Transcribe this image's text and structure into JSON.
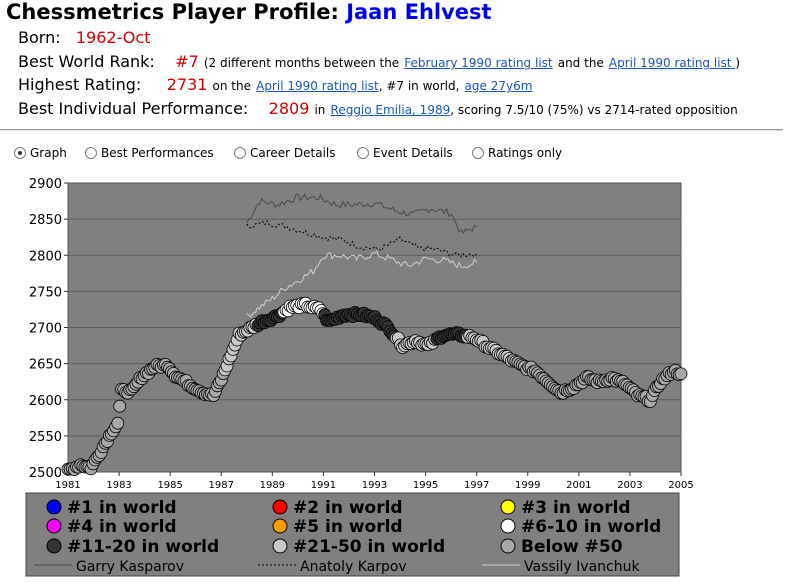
{
  "header": {
    "title_prefix": "Chessmetrics Player Profile:",
    "player_name": "Jaan Ehlvest"
  },
  "born": {
    "label": "Born:",
    "value": "1962-Oct"
  },
  "best_rank": {
    "label": "Best World Rank:",
    "value": "#7",
    "note_pre": "(2 different months between the",
    "link1": "February 1990 rating list",
    "note_mid": "and the",
    "link2": "April 1990 rating list ",
    "note_post": ")"
  },
  "highest_rating": {
    "label": "Highest Rating:",
    "value": "2731",
    "pre": "on the",
    "link": "April 1990 rating list",
    "mid": ", #7 in world,",
    "age_link": "age 27y6m"
  },
  "best_performance": {
    "label": "Best Individual Performance:",
    "value": "2809",
    "pre": "in",
    "link": "Reggio Emilia, 1989",
    "post": ", scoring 7.5/10 (75%) vs 2714-rated opposition"
  },
  "tabs": [
    {
      "label": "Graph",
      "selected": true
    },
    {
      "label": "Best Performances",
      "selected": false
    },
    {
      "label": "Career Details",
      "selected": false
    },
    {
      "label": "Event Details",
      "selected": false
    },
    {
      "label": "Ratings only",
      "selected": false
    }
  ],
  "chart_data": {
    "type": "scatter",
    "title": "",
    "xlabel": "",
    "ylabel": "",
    "xlim": [
      1981,
      2005
    ],
    "ylim": [
      2500,
      2900
    ],
    "x_ticks": [
      "1981",
      "1983",
      "1985",
      "1987",
      "1989",
      "1991",
      "1993",
      "1995",
      "1997",
      "1999",
      "2001",
      "2003",
      "2005"
    ],
    "y_ticks": [
      "2500",
      "2550",
      "2600",
      "2650",
      "2700",
      "2750",
      "2800",
      "2850",
      "2900"
    ],
    "grid": "horizontal",
    "plot_bg": "#808080",
    "legend_position": "bottom",
    "rank_categories": [
      {
        "label": "#1 in world",
        "color": "#0000ff"
      },
      {
        "label": "#2 in world",
        "color": "#ff0000"
      },
      {
        "label": "#3 in world",
        "color": "#ffff00"
      },
      {
        "label": "#4 in world",
        "color": "#ff00ff"
      },
      {
        "label": "#5 in world",
        "color": "#ff9900"
      },
      {
        "label": "#6-10 in world",
        "color": "#ffffff"
      },
      {
        "label": "#11-20 in world",
        "color": "#333333"
      },
      {
        "label": "#21-50 in world",
        "color": "#c8c8c8"
      },
      {
        "label": "Below #50",
        "color": "#a8a8a8"
      }
    ],
    "comparison_lines": [
      {
        "name": "Garry Kasparov",
        "style": "solid",
        "color": "#4a4a4a"
      },
      {
        "name": "Anatoly Karpov",
        "style": "dotted",
        "color": "#000000"
      },
      {
        "name": "Vassily Ivanchuk",
        "style": "solid",
        "color": "#cfcfcf"
      }
    ],
    "player_anchors": [
      {
        "x": 1981.0,
        "y": 2502,
        "rank": "Below #50"
      },
      {
        "x": 1981.5,
        "y": 2510,
        "rank": "Below #50"
      },
      {
        "x": 1981.9,
        "y": 2506,
        "rank": "Below #50"
      },
      {
        "x": 1982.3,
        "y": 2530,
        "rank": "Below #50"
      },
      {
        "x": 1982.7,
        "y": 2555,
        "rank": "Below #50"
      },
      {
        "x": 1982.95,
        "y": 2568,
        "rank": "Below #50"
      },
      {
        "x": 1983.1,
        "y": 2612,
        "rank": "Below #50"
      },
      {
        "x": 1983.5,
        "y": 2612,
        "rank": "Below #50"
      },
      {
        "x": 1983.9,
        "y": 2632,
        "rank": "Below #50"
      },
      {
        "x": 1984.4,
        "y": 2646,
        "rank": "Below #50"
      },
      {
        "x": 1984.9,
        "y": 2648,
        "rank": "Below #50"
      },
      {
        "x": 1985.2,
        "y": 2634,
        "rank": "Below #50"
      },
      {
        "x": 1985.8,
        "y": 2620,
        "rank": "Below #50"
      },
      {
        "x": 1986.3,
        "y": 2610,
        "rank": "Below #50"
      },
      {
        "x": 1986.7,
        "y": 2606,
        "rank": "Below #50"
      },
      {
        "x": 1987.0,
        "y": 2628,
        "rank": "Below #50"
      },
      {
        "x": 1987.3,
        "y": 2655,
        "rank": "#21-50 in world"
      },
      {
        "x": 1987.7,
        "y": 2690,
        "rank": "#21-50 in world"
      },
      {
        "x": 1988.2,
        "y": 2700,
        "rank": "#21-50 in world"
      },
      {
        "x": 1988.6,
        "y": 2708,
        "rank": "#11-20 in world"
      },
      {
        "x": 1989.2,
        "y": 2716,
        "rank": "#11-20 in world"
      },
      {
        "x": 1989.7,
        "y": 2728,
        "rank": "#6-10 in world"
      },
      {
        "x": 1990.3,
        "y": 2731,
        "rank": "#6-10 in world"
      },
      {
        "x": 1990.9,
        "y": 2724,
        "rank": "#6-10 in world"
      },
      {
        "x": 1991.2,
        "y": 2708,
        "rank": "#11-20 in world"
      },
      {
        "x": 1991.8,
        "y": 2718,
        "rank": "#11-20 in world"
      },
      {
        "x": 1992.5,
        "y": 2718,
        "rank": "#11-20 in world"
      },
      {
        "x": 1993.1,
        "y": 2712,
        "rank": "#11-20 in world"
      },
      {
        "x": 1993.6,
        "y": 2698,
        "rank": "#11-20 in world"
      },
      {
        "x": 1994.1,
        "y": 2675,
        "rank": "#21-50 in world"
      },
      {
        "x": 1994.6,
        "y": 2682,
        "rank": "#21-50 in world"
      },
      {
        "x": 1995.1,
        "y": 2675,
        "rank": "#21-50 in world"
      },
      {
        "x": 1995.7,
        "y": 2690,
        "rank": "#11-20 in world"
      },
      {
        "x": 1996.3,
        "y": 2690,
        "rank": "#11-20 in world"
      },
      {
        "x": 1996.9,
        "y": 2686,
        "rank": "#21-50 in world"
      },
      {
        "x": 1997.5,
        "y": 2672,
        "rank": "#21-50 in world"
      },
      {
        "x": 1998.1,
        "y": 2660,
        "rank": "#21-50 in world"
      },
      {
        "x": 1998.7,
        "y": 2648,
        "rank": "Below #50"
      },
      {
        "x": 1999.3,
        "y": 2640,
        "rank": "Below #50"
      },
      {
        "x": 1999.8,
        "y": 2625,
        "rank": "Below #50"
      },
      {
        "x": 2000.3,
        "y": 2610,
        "rank": "Below #50"
      },
      {
        "x": 2000.8,
        "y": 2618,
        "rank": "Below #50"
      },
      {
        "x": 2001.3,
        "y": 2630,
        "rank": "Below #50"
      },
      {
        "x": 2001.8,
        "y": 2625,
        "rank": "Below #50"
      },
      {
        "x": 2002.3,
        "y": 2630,
        "rank": "Below #50"
      },
      {
        "x": 2002.8,
        "y": 2622,
        "rank": "Below #50"
      },
      {
        "x": 2003.3,
        "y": 2606,
        "rank": "Below #50"
      },
      {
        "x": 2003.8,
        "y": 2600,
        "rank": "Below #50"
      },
      {
        "x": 2004.2,
        "y": 2625,
        "rank": "Below #50"
      },
      {
        "x": 2004.7,
        "y": 2640,
        "rank": "Below #50"
      },
      {
        "x": 2005.0,
        "y": 2636,
        "rank": "Below #50"
      }
    ],
    "kasparov_anchors": [
      [
        1988.0,
        2845
      ],
      [
        1988.5,
        2875
      ],
      [
        1989.2,
        2870
      ],
      [
        1990.0,
        2880
      ],
      [
        1990.8,
        2880
      ],
      [
        1991.5,
        2870
      ],
      [
        1992.3,
        2870
      ],
      [
        1993.0,
        2872
      ],
      [
        1993.8,
        2862
      ],
      [
        1994.5,
        2856
      ],
      [
        1995.2,
        2865
      ],
      [
        1996.0,
        2858
      ],
      [
        1996.4,
        2830
      ],
      [
        1997.0,
        2840
      ]
    ],
    "karpov_anchors": [
      [
        1988.0,
        2840
      ],
      [
        1988.8,
        2845
      ],
      [
        1989.5,
        2840
      ],
      [
        1990.3,
        2832
      ],
      [
        1991.0,
        2825
      ],
      [
        1991.7,
        2822
      ],
      [
        1992.4,
        2812
      ],
      [
        1993.2,
        2808
      ],
      [
        1994.0,
        2822
      ],
      [
        1994.7,
        2810
      ],
      [
        1995.4,
        2808
      ],
      [
        1996.2,
        2800
      ],
      [
        1997.0,
        2802
      ]
    ],
    "ivanchuk_anchors": [
      [
        1988.0,
        2715
      ],
      [
        1988.5,
        2728
      ],
      [
        1989.0,
        2740
      ],
      [
        1989.5,
        2755
      ],
      [
        1990.0,
        2765
      ],
      [
        1990.6,
        2778
      ],
      [
        1991.0,
        2800
      ],
      [
        1991.6,
        2800
      ],
      [
        1992.3,
        2795
      ],
      [
        1993.0,
        2802
      ],
      [
        1993.6,
        2795
      ],
      [
        1994.3,
        2785
      ],
      [
        1995.0,
        2795
      ],
      [
        1995.7,
        2793
      ],
      [
        1996.4,
        2785
      ],
      [
        1997.0,
        2790
      ]
    ]
  }
}
